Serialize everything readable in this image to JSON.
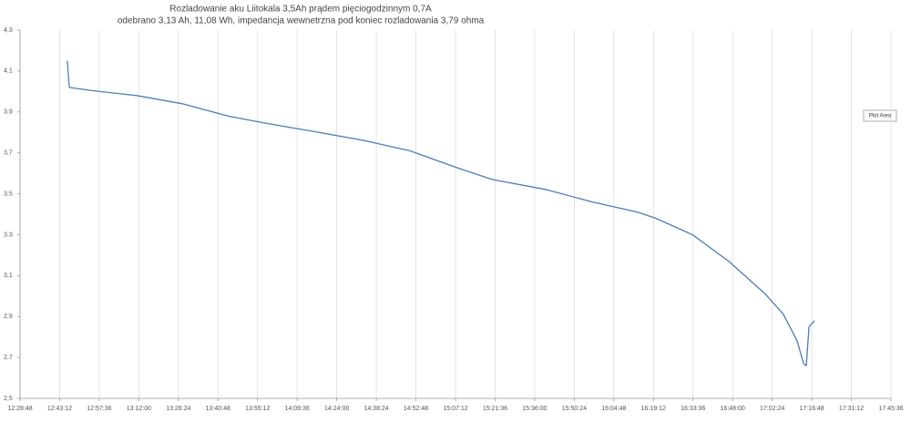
{
  "chart_data": {
    "type": "line",
    "title": [
      "Rozladowanie aku Liitokala 3,5Ah prądem pięciogodzinnym 0,7A",
      "odebrano 3,13 Ah, 11,08 Wh, impedancja wewnetrzna pod koniec rozladowania 3,79 ohma"
    ],
    "tooltip": "Plot Area",
    "x": [
      766.0,
      766.7,
      774.6,
      791.2,
      807.8,
      824.4,
      836.0,
      857.5,
      874.1,
      890.6,
      907.2,
      920.5,
      940.4,
      956.9,
      973.5,
      980.1,
      993.4,
      1006.6,
      1019.9,
      1026.5,
      1031.5,
      1033.8,
      1034.8,
      1035.8,
      1037.8
    ],
    "series": [
      {
        "color": "#4a7eb5",
        "values": [
          4.15,
          4.02,
          4.005,
          3.98,
          3.94,
          3.88,
          3.85,
          3.8,
          3.76,
          3.71,
          3.63,
          3.57,
          3.52,
          3.46,
          3.41,
          3.38,
          3.3,
          3.17,
          3.01,
          2.91,
          2.78,
          2.67,
          2.66,
          2.85,
          2.88
        ]
      }
    ],
    "xlim": [
      748.8,
      1065.6
    ],
    "xticks": [
      {
        "value": 748.8,
        "label": "12:28:48"
      },
      {
        "value": 763.2,
        "label": "12:43:12"
      },
      {
        "value": 777.6,
        "label": "12:57:36"
      },
      {
        "value": 792.0,
        "label": "13:12:00"
      },
      {
        "value": 806.4,
        "label": "13:26:24"
      },
      {
        "value": 820.8,
        "label": "13:40:48"
      },
      {
        "value": 835.2,
        "label": "13:55:12"
      },
      {
        "value": 849.6,
        "label": "14:09:36"
      },
      {
        "value": 864.0,
        "label": "14:24:00"
      },
      {
        "value": 878.4,
        "label": "14:38:24"
      },
      {
        "value": 892.8,
        "label": "14:52:48"
      },
      {
        "value": 907.2,
        "label": "15:07:12"
      },
      {
        "value": 921.6,
        "label": "15:21:36"
      },
      {
        "value": 936.0,
        "label": "15:36:00"
      },
      {
        "value": 950.4,
        "label": "15:50:24"
      },
      {
        "value": 964.8,
        "label": "16:04:48"
      },
      {
        "value": 979.2,
        "label": "16:19:12"
      },
      {
        "value": 993.6,
        "label": "16:33:36"
      },
      {
        "value": 1008.0,
        "label": "16:48:00"
      },
      {
        "value": 1022.4,
        "label": "17:02:24"
      },
      {
        "value": 1036.8,
        "label": "17:16:48"
      },
      {
        "value": 1051.2,
        "label": "17:31:12"
      },
      {
        "value": 1065.6,
        "label": "17:45:36"
      }
    ],
    "ylim": [
      2.5,
      4.3
    ],
    "yticks": [
      {
        "value": 2.5,
        "label": "2,5"
      },
      {
        "value": 2.7,
        "label": "2,7"
      },
      {
        "value": 2.9,
        "label": "2,9"
      },
      {
        "value": 3.1,
        "label": "3,1"
      },
      {
        "value": 3.3,
        "label": "3,3"
      },
      {
        "value": 3.5,
        "label": "3,5"
      },
      {
        "value": 3.7,
        "label": "3,7"
      },
      {
        "value": 3.9,
        "label": "3,9"
      },
      {
        "value": 4.1,
        "label": "4,1"
      },
      {
        "value": 4.3,
        "label": "4,3"
      }
    ],
    "grid": "x"
  }
}
